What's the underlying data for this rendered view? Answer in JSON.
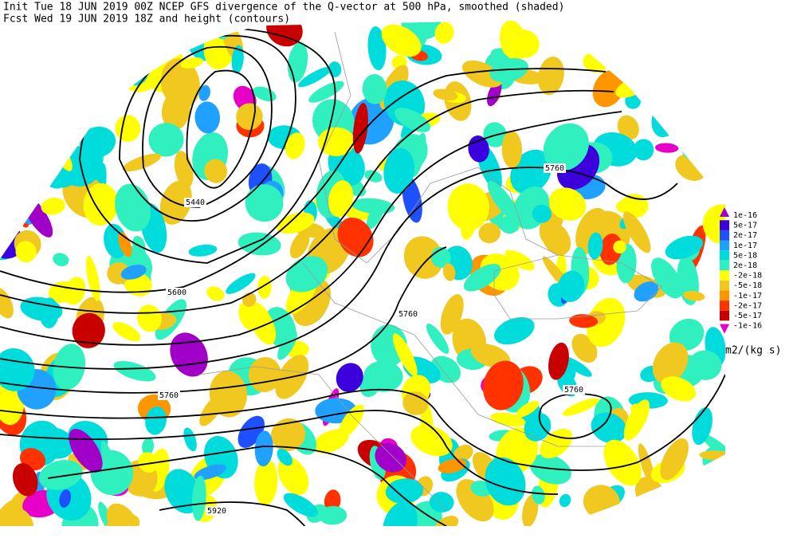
{
  "header": {
    "line1": "Init  Tue 18 JUN 2019 00Z  NCEP GFS divergence of the Q-vector at 500 hPa, smoothed (shaded)",
    "line2": "Fcst Wed 19 JUN 2019 18Z  and height (contours)"
  },
  "contour_labels": [
    "5440",
    "5600",
    "5760",
    "5760",
    "5760",
    "5760",
    "5920"
  ],
  "colorbar": {
    "units": "m2/(kg s)",
    "levels": [
      {
        "label": "1e-16",
        "color": "#a000c8"
      },
      {
        "label": "5e-17",
        "color": "#3c00dc"
      },
      {
        "label": "2e-17",
        "color": "#1e50ff"
      },
      {
        "label": "1e-17",
        "color": "#20a0ff"
      },
      {
        "label": "5e-18",
        "color": "#00dcdc"
      },
      {
        "label": "2e-18",
        "color": "#30f0c0"
      },
      {
        "label": "-2e-18",
        "color": "#ffff00"
      },
      {
        "label": "-5e-18",
        "color": "#f0c820"
      },
      {
        "label": "-1e-17",
        "color": "#ff9600"
      },
      {
        "label": "-2e-17",
        "color": "#ff3200"
      },
      {
        "label": "-5e-17",
        "color": "#c80000"
      },
      {
        "label": "-1e-16",
        "color": "#e600c8"
      }
    ]
  }
}
